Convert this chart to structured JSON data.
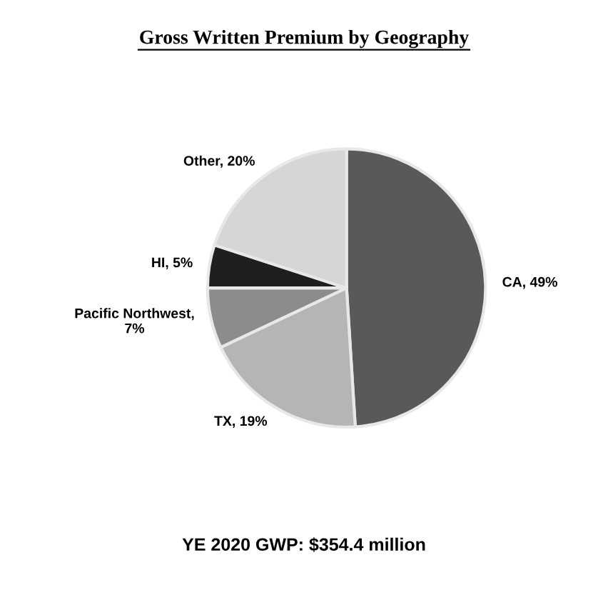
{
  "chart_data": {
    "type": "pie",
    "title": "Gross Written Premium by Geography",
    "categories": [
      "CA, 49%",
      "TX, 19%",
      "Pacific Northwest, 7%",
      "HI, 5%",
      "Other, 20%"
    ],
    "values": [
      49,
      19,
      7,
      5,
      20
    ],
    "colors": [
      "#595959",
      "#b5b5b5",
      "#8c8c8c",
      "#1f1f1f",
      "#d6d6d6"
    ],
    "annotations": [
      "YE 2020 GWP: $354.4 million"
    ]
  }
}
